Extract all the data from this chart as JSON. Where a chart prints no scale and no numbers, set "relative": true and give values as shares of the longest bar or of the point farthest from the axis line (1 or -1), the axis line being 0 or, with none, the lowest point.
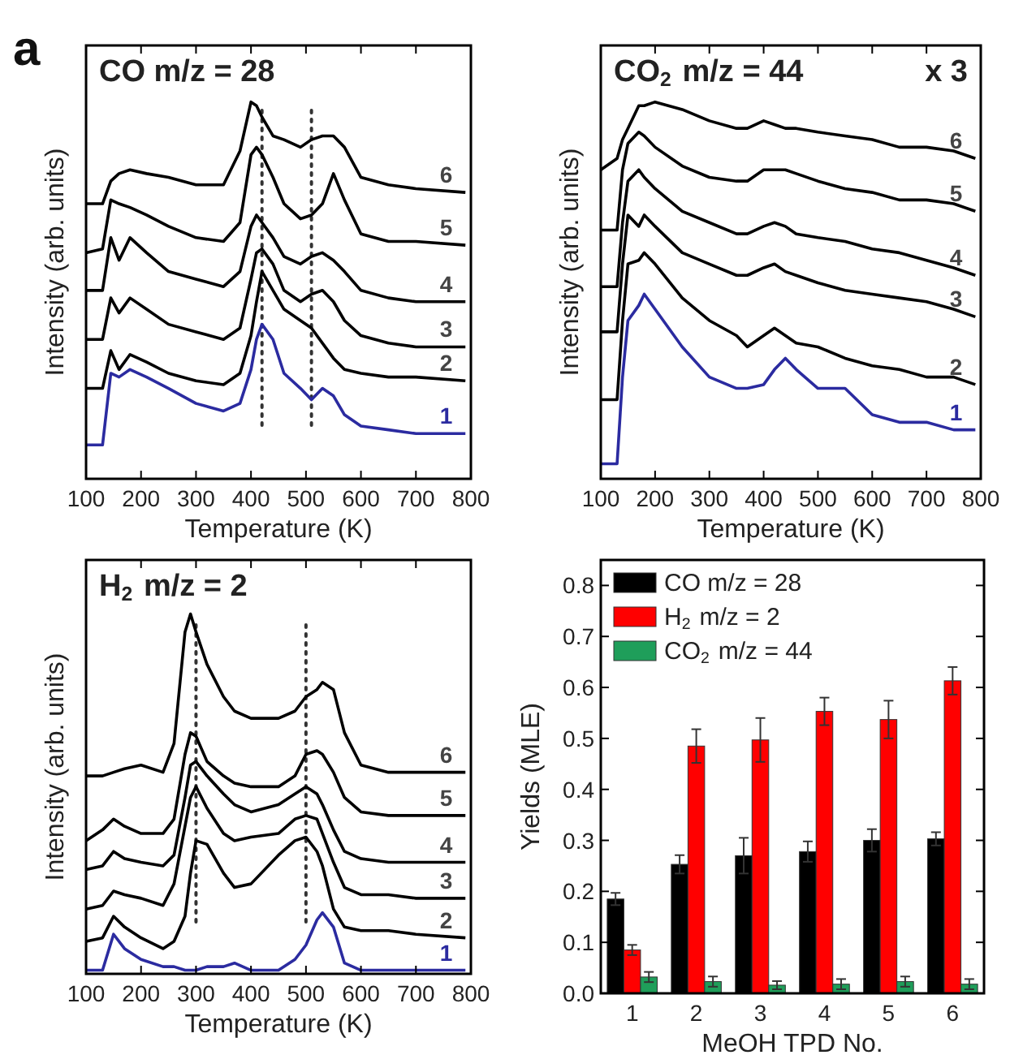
{
  "chart_data": [
    {
      "type": "line",
      "title": "CO m/z = 28",
      "xlabel": "Temperature (K)",
      "ylabel": "Intensity (arb. units)",
      "relative": true,
      "line_style": "solid",
      "xlim": [
        100,
        800
      ],
      "xticks": [
        100,
        200,
        300,
        400,
        500,
        600,
        700,
        800
      ],
      "annotations": [
        "a"
      ],
      "x": [
        100,
        130,
        145,
        160,
        180,
        210,
        250,
        300,
        350,
        380,
        400,
        410,
        420,
        440,
        460,
        490,
        510,
        530,
        550,
        570,
        600,
        650,
        700,
        790
      ],
      "ref_lines": [
        {
          "axis": "x",
          "value": 420,
          "line_style": "dotted"
        },
        {
          "axis": "x",
          "value": 510,
          "line_style": "dotted"
        }
      ],
      "series": [
        {
          "name": "1",
          "color": "#2b2ba0",
          "values": [
            0.09,
            0.09,
            0.28,
            0.27,
            0.29,
            0.27,
            0.24,
            0.2,
            0.18,
            0.2,
            0.29,
            0.37,
            0.41,
            0.37,
            0.28,
            0.24,
            0.21,
            0.24,
            0.22,
            0.17,
            0.14,
            0.13,
            0.12,
            0.12
          ]
        },
        {
          "name": "2",
          "color": "#000000",
          "values": [
            0.24,
            0.24,
            0.34,
            0.29,
            0.33,
            0.31,
            0.28,
            0.26,
            0.25,
            0.28,
            0.38,
            0.47,
            0.55,
            0.5,
            0.45,
            0.42,
            0.4,
            0.36,
            0.32,
            0.29,
            0.28,
            0.27,
            0.27,
            0.26
          ]
        },
        {
          "name": "3",
          "color": "#000000",
          "values": [
            0.37,
            0.37,
            0.48,
            0.44,
            0.48,
            0.45,
            0.41,
            0.39,
            0.37,
            0.4,
            0.53,
            0.6,
            0.61,
            0.57,
            0.5,
            0.47,
            0.49,
            0.5,
            0.47,
            0.42,
            0.38,
            0.36,
            0.35,
            0.35
          ]
        },
        {
          "name": "4",
          "color": "#000000",
          "values": [
            0.5,
            0.5,
            0.64,
            0.58,
            0.64,
            0.6,
            0.55,
            0.53,
            0.51,
            0.55,
            0.67,
            0.7,
            0.68,
            0.64,
            0.59,
            0.57,
            0.59,
            0.6,
            0.58,
            0.55,
            0.5,
            0.48,
            0.47,
            0.47
          ]
        },
        {
          "name": "5",
          "color": "#000000",
          "values": [
            0.6,
            0.61,
            0.74,
            0.73,
            0.72,
            0.7,
            0.67,
            0.64,
            0.63,
            0.68,
            0.86,
            0.88,
            0.86,
            0.8,
            0.73,
            0.69,
            0.7,
            0.73,
            0.81,
            0.74,
            0.65,
            0.63,
            0.63,
            0.62
          ]
        },
        {
          "name": "6",
          "color": "#000000",
          "values": [
            0.73,
            0.73,
            0.79,
            0.81,
            0.82,
            0.81,
            0.8,
            0.78,
            0.78,
            0.87,
            1,
            0.99,
            0.96,
            0.91,
            0.9,
            0.88,
            0.9,
            0.91,
            0.91,
            0.88,
            0.8,
            0.78,
            0.77,
            0.76
          ]
        }
      ]
    },
    {
      "type": "line",
      "title": "CO$_{2}$ m/z = 44",
      "xlabel": "Temperature (K)",
      "ylabel": "Intensity (arb. units)",
      "relative": true,
      "line_style": "solid",
      "xlim": [
        100,
        800
      ],
      "xticks": [
        100,
        200,
        300,
        400,
        500,
        600,
        700,
        800
      ],
      "annotations": [
        "x 3"
      ],
      "x": [
        100,
        130,
        140,
        150,
        170,
        180,
        200,
        250,
        300,
        350,
        370,
        400,
        420,
        440,
        460,
        500,
        550,
        600,
        650,
        700,
        750,
        790
      ],
      "series": [
        {
          "name": "1",
          "color": "#2b2ba0",
          "values": [
            0.04,
            0.04,
            0.27,
            0.42,
            0.46,
            0.49,
            0.45,
            0.35,
            0.27,
            0.24,
            0.24,
            0.25,
            0.29,
            0.32,
            0.29,
            0.24,
            0.24,
            0.17,
            0.15,
            0.15,
            0.13,
            0.13
          ]
        },
        {
          "name": "2",
          "color": "#000000",
          "values": [
            0.21,
            0.21,
            0.42,
            0.57,
            0.58,
            0.6,
            0.57,
            0.48,
            0.42,
            0.38,
            0.35,
            0.38,
            0.4,
            0.38,
            0.36,
            0.35,
            0.32,
            0.3,
            0.29,
            0.27,
            0.27,
            0.25
          ]
        },
        {
          "name": "3",
          "color": "#000000",
          "values": [
            0.39,
            0.39,
            0.57,
            0.7,
            0.67,
            0.7,
            0.67,
            0.6,
            0.57,
            0.54,
            0.54,
            0.56,
            0.57,
            0.55,
            0.54,
            0.52,
            0.5,
            0.49,
            0.48,
            0.47,
            0.45,
            0.43
          ]
        },
        {
          "name": "4",
          "color": "#000000",
          "values": [
            0.51,
            0.51,
            0.68,
            0.79,
            0.82,
            0.8,
            0.77,
            0.71,
            0.68,
            0.65,
            0.65,
            0.67,
            0.68,
            0.67,
            0.65,
            0.64,
            0.63,
            0.61,
            0.6,
            0.58,
            0.56,
            0.54
          ]
        },
        {
          "name": "5",
          "color": "#000000",
          "values": [
            0.66,
            0.66,
            0.82,
            0.89,
            0.92,
            0.91,
            0.88,
            0.83,
            0.8,
            0.79,
            0.79,
            0.82,
            0.82,
            0.82,
            0.81,
            0.79,
            0.77,
            0.76,
            0.74,
            0.74,
            0.73,
            0.71
          ]
        },
        {
          "name": "6",
          "color": "#000000",
          "values": [
            0.82,
            0.85,
            0.9,
            0.93,
            0.99,
            0.99,
            1,
            0.98,
            0.95,
            0.93,
            0.93,
            0.95,
            0.94,
            0.93,
            0.93,
            0.92,
            0.91,
            0.9,
            0.88,
            0.88,
            0.87,
            0.85
          ]
        }
      ]
    },
    {
      "type": "line",
      "title": "H$_{2}$ m/z = 2",
      "xlabel": "Temperature (K)",
      "ylabel": "Intensity (arb. units)",
      "relative": true,
      "line_style": "solid",
      "xlim": [
        100,
        800
      ],
      "xticks": [
        100,
        200,
        300,
        400,
        500,
        600,
        700,
        800
      ],
      "x": [
        100,
        130,
        150,
        170,
        200,
        240,
        260,
        280,
        290,
        300,
        320,
        350,
        370,
        400,
        450,
        480,
        500,
        520,
        530,
        550,
        570,
        600,
        650,
        700,
        790
      ],
      "ref_lines": [
        {
          "axis": "x",
          "value": 300,
          "line_style": "dotted"
        },
        {
          "axis": "x",
          "value": 500,
          "line_style": "dotted"
        }
      ],
      "series": [
        {
          "name": "1",
          "color": "#2b2ba0",
          "values": [
            0.01,
            0.01,
            0.11,
            0.07,
            0.04,
            0.02,
            0.02,
            0.01,
            0.01,
            0.01,
            0.02,
            0.02,
            0.03,
            0.01,
            0.01,
            0.04,
            0.08,
            0.15,
            0.17,
            0.13,
            0.03,
            0.01,
            0.01,
            0.01,
            0.01
          ]
        },
        {
          "name": "2",
          "color": "#000000",
          "values": [
            0.09,
            0.1,
            0.16,
            0.13,
            0.1,
            0.07,
            0.09,
            0.16,
            0.28,
            0.37,
            0.36,
            0.28,
            0.24,
            0.25,
            0.33,
            0.37,
            0.38,
            0.34,
            0.3,
            0.18,
            0.13,
            0.12,
            0.12,
            0.11,
            0.1
          ]
        },
        {
          "name": "3",
          "color": "#000000",
          "values": [
            0.18,
            0.19,
            0.23,
            0.22,
            0.21,
            0.19,
            0.25,
            0.41,
            0.49,
            0.52,
            0.46,
            0.39,
            0.37,
            0.38,
            0.39,
            0.43,
            0.44,
            0.43,
            0.39,
            0.31,
            0.24,
            0.22,
            0.22,
            0.21,
            0.21
          ]
        },
        {
          "name": "4",
          "color": "#000000",
          "values": [
            0.29,
            0.3,
            0.34,
            0.32,
            0.31,
            0.3,
            0.33,
            0.49,
            0.58,
            0.59,
            0.55,
            0.5,
            0.47,
            0.45,
            0.47,
            0.5,
            0.52,
            0.5,
            0.47,
            0.4,
            0.34,
            0.32,
            0.31,
            0.31,
            0.31
          ]
        },
        {
          "name": "5",
          "color": "#000000",
          "values": [
            0.37,
            0.4,
            0.43,
            0.41,
            0.39,
            0.39,
            0.43,
            0.61,
            0.67,
            0.66,
            0.59,
            0.55,
            0.53,
            0.52,
            0.52,
            0.55,
            0.61,
            0.62,
            0.61,
            0.56,
            0.49,
            0.45,
            0.44,
            0.44,
            0.44
          ]
        },
        {
          "name": "6",
          "color": "#000000",
          "values": [
            0.55,
            0.55,
            0.56,
            0.57,
            0.58,
            0.56,
            0.64,
            0.95,
            1,
            0.95,
            0.86,
            0.77,
            0.73,
            0.71,
            0.71,
            0.73,
            0.77,
            0.79,
            0.81,
            0.79,
            0.67,
            0.58,
            0.56,
            0.56,
            0.56
          ]
        }
      ]
    },
    {
      "type": "bar",
      "xlabel": "MeOH TPD No.",
      "ylabel": "Yields (MLE)",
      "legend": "top left",
      "categories": [
        "1",
        "2",
        "3",
        "4",
        "5",
        "6"
      ],
      "ylim": [
        0,
        0.85
      ],
      "yticks": [
        {
          "value": 0,
          "label": "0.0"
        },
        {
          "value": 0.1,
          "label": "0.1"
        },
        {
          "value": 0.2,
          "label": "0.2"
        },
        {
          "value": 0.3,
          "label": "0.3"
        },
        {
          "value": 0.4,
          "label": "0.4"
        },
        {
          "value": 0.5,
          "label": "0.5"
        },
        {
          "value": 0.6,
          "label": "0.6"
        },
        {
          "value": 0.7,
          "label": "0.7"
        },
        {
          "value": 0.8,
          "label": "0.8"
        }
      ],
      "series": [
        {
          "name": "CO m/z = 28",
          "color": "#000000",
          "values": [
            0.185,
            0.253,
            0.27,
            0.278,
            0.3,
            0.303
          ],
          "errors": [
            0.012,
            0.018,
            0.035,
            0.02,
            0.022,
            0.013
          ]
        },
        {
          "name": "H$_{2}$ m/z = 2",
          "color": "#ff0000",
          "values": [
            0.085,
            0.485,
            0.497,
            0.553,
            0.537,
            0.613
          ],
          "errors": [
            0.01,
            0.033,
            0.043,
            0.027,
            0.037,
            0.027
          ]
        },
        {
          "name": "CO$_{2}$ m/z = 44",
          "color": "#1f9e5a",
          "values": [
            0.032,
            0.023,
            0.016,
            0.018,
            0.023,
            0.018
          ],
          "errors": [
            0.01,
            0.01,
            0.008,
            0.01,
            0.01,
            0.01
          ]
        }
      ]
    }
  ]
}
